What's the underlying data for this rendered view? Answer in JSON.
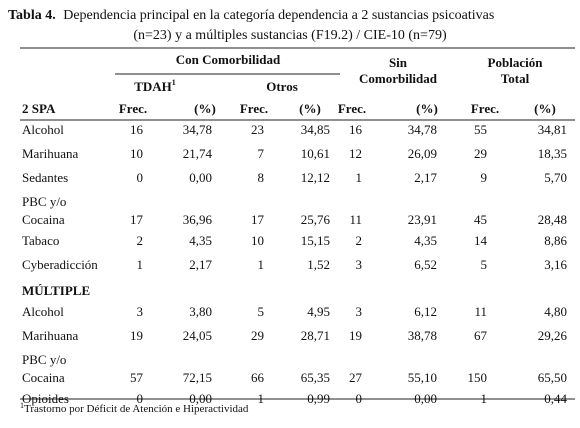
{
  "title": {
    "label": "Tabla 4.",
    "line1": "Dependencia principal en la categoría dependencia a 2 sustancias psicoativas",
    "line2": "(n=23)  y a múltiples sustancias (F19.2) / CIE-10 (n=79)"
  },
  "table": {
    "header": {
      "group_comorbidity": "Con Comorbilidad",
      "group_without": [
        "Sin",
        "Comorbilidad"
      ],
      "group_total": [
        "Población",
        "Total"
      ],
      "sub_tdah": "TDAH",
      "sub_tdah_note": "1",
      "sub_other": "Otros",
      "columns": [
        "Frec.",
        "(%)",
        "Frec.",
        "(%)",
        "Frec.",
        "(%)",
        "Frec.",
        "(%)"
      ]
    },
    "sections": [
      {
        "title": "2 SPA",
        "rows": [
          {
            "label": [
              "Alcohol"
            ],
            "cells": [
              "16",
              "34,78",
              "23",
              "34,85",
              "16",
              "34,78",
              "55",
              "34,81"
            ]
          },
          {
            "label": [
              "Marihuana"
            ],
            "cells": [
              "10",
              "21,74",
              "7",
              "10,61",
              "12",
              "26,09",
              "29",
              "18,35"
            ]
          },
          {
            "label": [
              "Sedantes"
            ],
            "cells": [
              "0",
              "0,00",
              "8",
              "12,12",
              "1",
              "2,17",
              "9",
              "5,70"
            ]
          },
          {
            "label": [
              "PBC y/o",
              "Cocaina"
            ],
            "cells": [
              "17",
              "36,96",
              "17",
              "25,76",
              "11",
              "23,91",
              "45",
              "28,48"
            ]
          },
          {
            "label": [
              "Tabaco"
            ],
            "cells": [
              "2",
              "4,35",
              "10",
              "15,15",
              "2",
              "4,35",
              "14",
              "8,86"
            ]
          },
          {
            "label": [
              "Cyberadicción"
            ],
            "cells": [
              "1",
              "2,17",
              "1",
              "1,52",
              "3",
              "6,52",
              "5",
              "3,16"
            ]
          }
        ]
      },
      {
        "title": "MÚLTIPLE",
        "rows": [
          {
            "label": [
              "Alcohol"
            ],
            "cells": [
              "3",
              "3,80",
              "5",
              "4,95",
              "3",
              "6,12",
              "11",
              "4,80"
            ]
          },
          {
            "label": [
              "Marihuana"
            ],
            "cells": [
              "19",
              "24,05",
              "29",
              "28,71",
              "19",
              "38,78",
              "67",
              "29,26"
            ]
          },
          {
            "label": [
              "PBC y/o",
              "Cocaina"
            ],
            "cells": [
              "57",
              "72,15",
              "66",
              "65,35",
              "27",
              "55,10",
              "150",
              "65,50"
            ]
          },
          {
            "label": [
              "Opioides"
            ],
            "cells": [
              "0",
              "0,00",
              "1",
              "0,99",
              "0",
              "0,00",
              "1",
              "0,44"
            ]
          }
        ]
      }
    ]
  },
  "footnote": {
    "mark": "1",
    "text": "Trastorno por Déficit de Atención e Hiperactividad"
  }
}
